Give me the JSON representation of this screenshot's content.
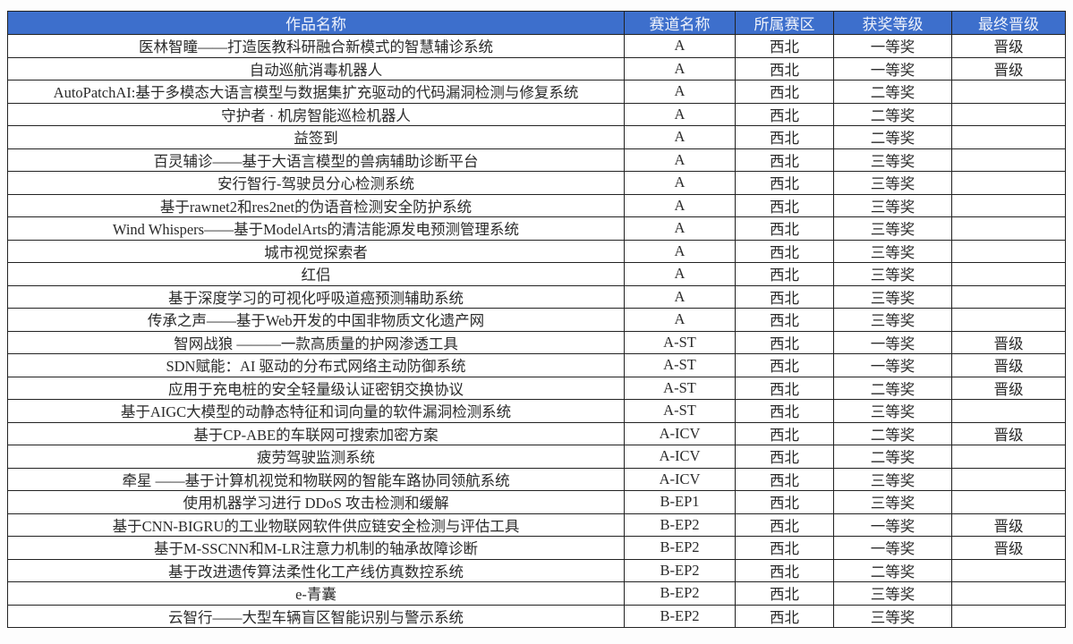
{
  "table": {
    "headers": [
      "作品名称",
      "赛道名称",
      "所属赛区",
      "获奖等级",
      "最终晋级"
    ],
    "header_color": "#3d6fcc",
    "rows": [
      [
        "医林智瞳——打造医教科研融合新模式的智慧辅诊系统",
        "A",
        "西北",
        "一等奖",
        "晋级"
      ],
      [
        "自动巡航消毒机器人",
        "A",
        "西北",
        "一等奖",
        "晋级"
      ],
      [
        "AutoPatchAI:基于多模态大语言模型与数据集扩充驱动的代码漏洞检测与修复系统",
        "A",
        "西北",
        "二等奖",
        ""
      ],
      [
        "守护者 · 机房智能巡检机器人",
        "A",
        "西北",
        "二等奖",
        ""
      ],
      [
        "益签到",
        "A",
        "西北",
        "二等奖",
        ""
      ],
      [
        "百灵辅诊——基于大语言模型的兽病辅助诊断平台",
        "A",
        "西北",
        "三等奖",
        ""
      ],
      [
        "安行智行-驾驶员分心检测系统",
        "A",
        "西北",
        "三等奖",
        ""
      ],
      [
        "基于rawnet2和res2net的伪语音检测安全防护系统",
        "A",
        "西北",
        "三等奖",
        ""
      ],
      [
        "Wind Whispers——基于ModelArts的清洁能源发电预测管理系统",
        "A",
        "西北",
        "三等奖",
        ""
      ],
      [
        "城市视觉探索者",
        "A",
        "西北",
        "三等奖",
        ""
      ],
      [
        "红侣",
        "A",
        "西北",
        "三等奖",
        ""
      ],
      [
        "基于深度学习的可视化呼吸道癌预测辅助系统",
        "A",
        "西北",
        "三等奖",
        ""
      ],
      [
        "传承之声——基于Web开发的中国非物质文化遗产网",
        "A",
        "西北",
        "三等奖",
        ""
      ],
      [
        "智网战狼 ———一款高质量的护网渗透工具",
        "A-ST",
        "西北",
        "一等奖",
        "晋级"
      ],
      [
        "SDN赋能：AI 驱动的分布式网络主动防御系统",
        "A-ST",
        "西北",
        "一等奖",
        "晋级"
      ],
      [
        "应用于充电桩的安全轻量级认证密钥交换协议",
        "A-ST",
        "西北",
        "二等奖",
        "晋级"
      ],
      [
        "基于AIGC大模型的动静态特征和词向量的软件漏洞检测系统",
        "A-ST",
        "西北",
        "三等奖",
        ""
      ],
      [
        "基于CP-ABE的车联网可搜索加密方案",
        "A-ICV",
        "西北",
        "二等奖",
        "晋级"
      ],
      [
        "疲劳驾驶监测系统",
        "A-ICV",
        "西北",
        "二等奖",
        ""
      ],
      [
        "牵星 ——基于计算机视觉和物联网的智能车路协同领航系统",
        "A-ICV",
        "西北",
        "三等奖",
        ""
      ],
      [
        "使用机器学习进行 DDoS 攻击检测和缓解",
        "B-EP1",
        "西北",
        "三等奖",
        ""
      ],
      [
        "基于CNN-BIGRU的工业物联网软件供应链安全检测与评估工具",
        "B-EP2",
        "西北",
        "一等奖",
        "晋级"
      ],
      [
        "基于M-SSCNN和M-LR注意力机制的轴承故障诊断",
        "B-EP2",
        "西北",
        "一等奖",
        "晋级"
      ],
      [
        "基于改进遗传算法柔性化工产线仿真数控系统",
        "B-EP2",
        "西北",
        "二等奖",
        ""
      ],
      [
        "e-青囊",
        "B-EP2",
        "西北",
        "三等奖",
        ""
      ],
      [
        "云智行——大型车辆盲区智能识别与警示系统",
        "B-EP2",
        "西北",
        "三等奖",
        ""
      ]
    ]
  }
}
